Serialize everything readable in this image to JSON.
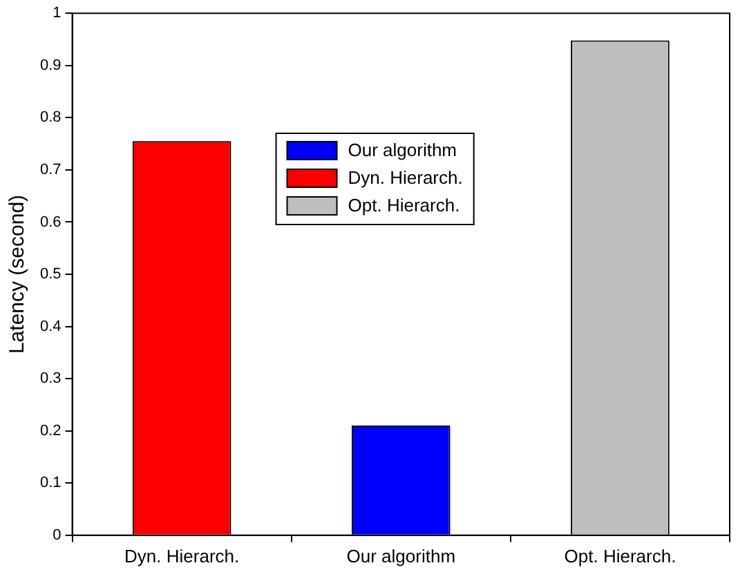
{
  "chart_data": {
    "type": "bar",
    "ylabel": "Latency (second)",
    "categories": [
      "Dyn. Hierarch.",
      "Our algorithm",
      "Opt. Hierarch."
    ],
    "series": [
      {
        "name": "Our algorithm",
        "color": "#0000ff",
        "values": [
          null,
          0.21,
          null
        ]
      },
      {
        "name": "Dyn. Hierarch.",
        "color": "#ff0000",
        "values": [
          0.755,
          null,
          null
        ]
      },
      {
        "name": "Opt. Hierarch.",
        "color": "#bebebe",
        "values": [
          null,
          null,
          0.948
        ]
      }
    ],
    "ylim": [
      0,
      1
    ],
    "yticks": [
      0,
      0.1,
      0.2,
      0.3,
      0.4,
      0.5,
      0.6,
      0.7,
      0.8,
      0.9,
      1
    ],
    "grid": false,
    "legend": "top"
  }
}
